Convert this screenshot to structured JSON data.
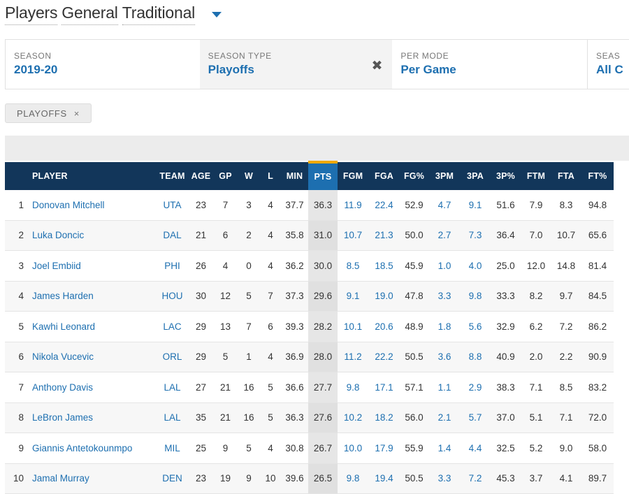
{
  "header": {
    "title_words": [
      "Players",
      "General",
      "Traditional"
    ],
    "title_icon": "chevron-down-icon"
  },
  "filters": [
    {
      "label": "SEASON",
      "value": "2019-20"
    },
    {
      "label": "SEASON TYPE",
      "value": "Playoffs",
      "clear_icon": "close-icon"
    },
    {
      "label": "PER MODE",
      "value": "Per Game"
    },
    {
      "label": "SEAS",
      "value": "All C"
    }
  ],
  "active_tag": {
    "label": "PLAYOFFS",
    "remove_icon": "close-icon",
    "remove_glyph": "×",
    "clear_glyph": "✖"
  },
  "colors": {
    "header_bg": "#12365a",
    "sorted_header_bg": "#1d6fb0",
    "sorted_marker": "#f2a900",
    "link": "#1d6fb0"
  },
  "table": {
    "columns": [
      "",
      "PLAYER",
      "TEAM",
      "AGE",
      "GP",
      "W",
      "L",
      "MIN",
      "PTS",
      "FGM",
      "FGA",
      "FG%",
      "3PM",
      "3PA",
      "3P%",
      "FTM",
      "FTA",
      "FT%"
    ],
    "sorted_column": "PTS",
    "rows": [
      [
        "1",
        "Donovan Mitchell",
        "UTA",
        "23",
        "7",
        "3",
        "4",
        "37.7",
        "36.3",
        "11.9",
        "22.4",
        "52.9",
        "4.7",
        "9.1",
        "51.6",
        "7.9",
        "8.3",
        "94.8"
      ],
      [
        "2",
        "Luka Doncic",
        "DAL",
        "21",
        "6",
        "2",
        "4",
        "35.8",
        "31.0",
        "10.7",
        "21.3",
        "50.0",
        "2.7",
        "7.3",
        "36.4",
        "7.0",
        "10.7",
        "65.6"
      ],
      [
        "3",
        "Joel Embiid",
        "PHI",
        "26",
        "4",
        "0",
        "4",
        "36.2",
        "30.0",
        "8.5",
        "18.5",
        "45.9",
        "1.0",
        "4.0",
        "25.0",
        "12.0",
        "14.8",
        "81.4"
      ],
      [
        "4",
        "James Harden",
        "HOU",
        "30",
        "12",
        "5",
        "7",
        "37.3",
        "29.6",
        "9.1",
        "19.0",
        "47.8",
        "3.3",
        "9.8",
        "33.3",
        "8.2",
        "9.7",
        "84.5"
      ],
      [
        "5",
        "Kawhi Leonard",
        "LAC",
        "29",
        "13",
        "7",
        "6",
        "39.3",
        "28.2",
        "10.1",
        "20.6",
        "48.9",
        "1.8",
        "5.6",
        "32.9",
        "6.2",
        "7.2",
        "86.2"
      ],
      [
        "6",
        "Nikola Vucevic",
        "ORL",
        "29",
        "5",
        "1",
        "4",
        "36.9",
        "28.0",
        "11.2",
        "22.2",
        "50.5",
        "3.6",
        "8.8",
        "40.9",
        "2.0",
        "2.2",
        "90.9"
      ],
      [
        "7",
        "Anthony Davis",
        "LAL",
        "27",
        "21",
        "16",
        "5",
        "36.6",
        "27.7",
        "9.8",
        "17.1",
        "57.1",
        "1.1",
        "2.9",
        "38.3",
        "7.1",
        "8.5",
        "83.2"
      ],
      [
        "8",
        "LeBron James",
        "LAL",
        "35",
        "21",
        "16",
        "5",
        "36.3",
        "27.6",
        "10.2",
        "18.2",
        "56.0",
        "2.1",
        "5.7",
        "37.0",
        "5.1",
        "7.1",
        "72.0"
      ],
      [
        "9",
        "Giannis Antetokounmpo",
        "MIL",
        "25",
        "9",
        "5",
        "4",
        "30.8",
        "26.7",
        "10.0",
        "17.9",
        "55.9",
        "1.4",
        "4.4",
        "32.5",
        "5.2",
        "9.0",
        "58.0"
      ],
      [
        "10",
        "Jamal Murray",
        "DEN",
        "23",
        "19",
        "9",
        "10",
        "39.6",
        "26.5",
        "9.8",
        "19.4",
        "50.5",
        "3.3",
        "7.2",
        "45.3",
        "3.7",
        "4.1",
        "89.7"
      ]
    ]
  }
}
